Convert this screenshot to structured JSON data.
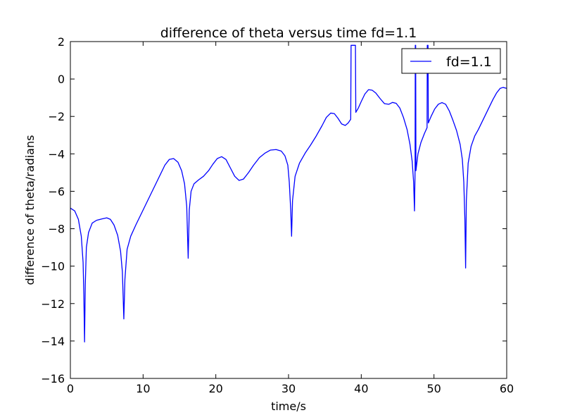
{
  "colors": {
    "series": "#0000ff",
    "axes": "#000000",
    "background": "#ffffff"
  },
  "chart_data": {
    "type": "line",
    "title": "difference of theta versus time  fd=1.1",
    "xlabel": "time/s",
    "ylabel": "difference of theta/radians",
    "xlim": [
      0,
      60
    ],
    "ylim": [
      -16,
      2
    ],
    "xticks": [
      0,
      10,
      20,
      30,
      40,
      50,
      60
    ],
    "yticks": [
      -16,
      -14,
      -12,
      -10,
      -8,
      -6,
      -4,
      -2,
      0,
      2
    ],
    "grid": false,
    "legend_position": "top-right",
    "series": [
      {
        "name": "fd=1.1",
        "color": "#0000ff",
        "points": [
          [
            0,
            -6.9
          ],
          [
            0.6,
            -7.05
          ],
          [
            1.1,
            -7.5
          ],
          [
            1.5,
            -8.4
          ],
          [
            1.75,
            -9.8
          ],
          [
            1.85,
            -11.5
          ],
          [
            1.95,
            -14.05
          ],
          [
            2.05,
            -11.0
          ],
          [
            2.2,
            -9.0
          ],
          [
            2.5,
            -8.2
          ],
          [
            3.0,
            -7.7
          ],
          [
            3.6,
            -7.55
          ],
          [
            4.3,
            -7.48
          ],
          [
            5.0,
            -7.42
          ],
          [
            5.5,
            -7.5
          ],
          [
            6.0,
            -7.8
          ],
          [
            6.5,
            -8.35
          ],
          [
            6.9,
            -9.2
          ],
          [
            7.15,
            -10.3
          ],
          [
            7.35,
            -12.82
          ],
          [
            7.5,
            -10.7
          ],
          [
            7.8,
            -9.1
          ],
          [
            8.3,
            -8.4
          ],
          [
            9.0,
            -7.8
          ],
          [
            10.0,
            -7.0
          ],
          [
            11.0,
            -6.2
          ],
          [
            12.0,
            -5.4
          ],
          [
            13.0,
            -4.6
          ],
          [
            13.6,
            -4.3
          ],
          [
            14.2,
            -4.25
          ],
          [
            14.8,
            -4.45
          ],
          [
            15.3,
            -4.9
          ],
          [
            15.7,
            -5.6
          ],
          [
            16.0,
            -6.8
          ],
          [
            16.2,
            -9.58
          ],
          [
            16.35,
            -7.0
          ],
          [
            16.6,
            -6.0
          ],
          [
            17.0,
            -5.6
          ],
          [
            17.6,
            -5.4
          ],
          [
            18.3,
            -5.2
          ],
          [
            19.0,
            -4.9
          ],
          [
            19.6,
            -4.55
          ],
          [
            20.2,
            -4.25
          ],
          [
            20.8,
            -4.15
          ],
          [
            21.4,
            -4.3
          ],
          [
            22.0,
            -4.75
          ],
          [
            22.6,
            -5.2
          ],
          [
            23.2,
            -5.42
          ],
          [
            23.8,
            -5.35
          ],
          [
            24.5,
            -5.0
          ],
          [
            25.2,
            -4.6
          ],
          [
            26.0,
            -4.2
          ],
          [
            26.8,
            -3.95
          ],
          [
            27.5,
            -3.8
          ],
          [
            28.3,
            -3.77
          ],
          [
            29.0,
            -3.85
          ],
          [
            29.5,
            -4.1
          ],
          [
            29.9,
            -4.6
          ],
          [
            30.1,
            -5.5
          ],
          [
            30.3,
            -7.0
          ],
          [
            30.42,
            -8.4
          ],
          [
            30.55,
            -6.5
          ],
          [
            30.9,
            -5.2
          ],
          [
            31.5,
            -4.5
          ],
          [
            32.3,
            -3.95
          ],
          [
            33.0,
            -3.55
          ],
          [
            33.8,
            -3.05
          ],
          [
            34.6,
            -2.5
          ],
          [
            35.2,
            -2.05
          ],
          [
            35.8,
            -1.82
          ],
          [
            36.3,
            -1.85
          ],
          [
            36.8,
            -2.1
          ],
          [
            37.3,
            -2.4
          ],
          [
            37.8,
            -2.48
          ],
          [
            38.2,
            -2.35
          ],
          [
            38.55,
            -2.15
          ],
          [
            38.6,
            1.8
          ],
          [
            39.2,
            1.8
          ],
          [
            39.25,
            -1.78
          ],
          [
            39.6,
            -1.55
          ],
          [
            40.0,
            -1.2
          ],
          [
            40.5,
            -0.8
          ],
          [
            41.0,
            -0.57
          ],
          [
            41.5,
            -0.6
          ],
          [
            42.0,
            -0.75
          ],
          [
            42.6,
            -1.05
          ],
          [
            43.2,
            -1.32
          ],
          [
            43.8,
            -1.35
          ],
          [
            44.3,
            -1.25
          ],
          [
            44.8,
            -1.3
          ],
          [
            45.3,
            -1.55
          ],
          [
            45.8,
            -2.05
          ],
          [
            46.3,
            -2.7
          ],
          [
            46.7,
            -3.5
          ],
          [
            47.0,
            -4.4
          ],
          [
            47.2,
            -5.5
          ],
          [
            47.32,
            -7.05
          ],
          [
            47.4,
            -4.9
          ],
          [
            47.43,
            1.8
          ],
          [
            47.48,
            1.8
          ],
          [
            47.52,
            -4.9
          ],
          [
            47.8,
            -4.0
          ],
          [
            48.2,
            -3.4
          ],
          [
            48.7,
            -2.9
          ],
          [
            49.05,
            -2.6
          ],
          [
            49.08,
            1.8
          ],
          [
            49.18,
            1.8
          ],
          [
            49.22,
            -2.35
          ],
          [
            49.6,
            -2.0
          ],
          [
            50.1,
            -1.6
          ],
          [
            50.6,
            -1.35
          ],
          [
            51.1,
            -1.26
          ],
          [
            51.6,
            -1.35
          ],
          [
            52.1,
            -1.7
          ],
          [
            52.6,
            -2.2
          ],
          [
            53.1,
            -2.75
          ],
          [
            53.6,
            -3.5
          ],
          [
            53.9,
            -4.3
          ],
          [
            54.1,
            -5.5
          ],
          [
            54.25,
            -7.5
          ],
          [
            54.35,
            -10.1
          ],
          [
            54.45,
            -6.5
          ],
          [
            54.7,
            -4.5
          ],
          [
            55.1,
            -3.6
          ],
          [
            55.6,
            -3.05
          ],
          [
            56.1,
            -2.7
          ],
          [
            56.6,
            -2.3
          ],
          [
            57.1,
            -1.9
          ],
          [
            57.6,
            -1.5
          ],
          [
            58.1,
            -1.1
          ],
          [
            58.6,
            -0.75
          ],
          [
            59.1,
            -0.5
          ],
          [
            59.5,
            -0.45
          ],
          [
            60.0,
            -0.5
          ]
        ]
      }
    ]
  }
}
